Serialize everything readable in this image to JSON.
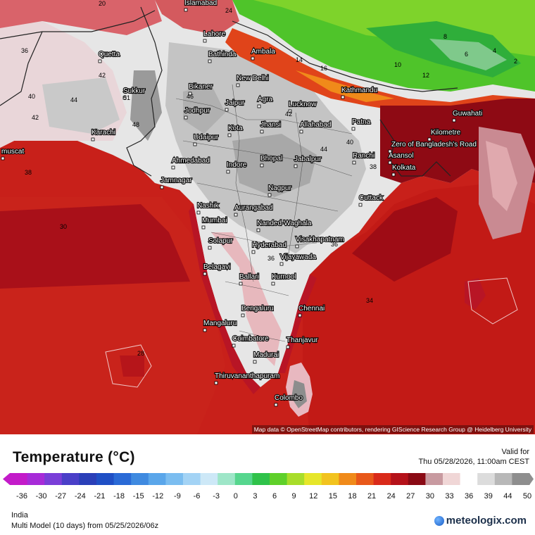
{
  "title": "Temperature (°C)",
  "valid_label": "Valid for",
  "valid_time": "Thu 05/28/2026, 11:00am CEST",
  "region": "India",
  "model_run": "Multi Model (10 days) from 05/25/2026/06z",
  "brand": "meteologix.com",
  "attribution": "Map data © OpenStreetMap contributors, rendering GIScience Research Group @ Heidelberg University",
  "legend_ticks": [
    "-36",
    "-30",
    "-27",
    "-24",
    "-21",
    "-18",
    "-15",
    "-12",
    "-9",
    "-6",
    "-3",
    "0",
    "3",
    "6",
    "9",
    "12",
    "15",
    "18",
    "21",
    "24",
    "27",
    "30",
    "33",
    "36",
    "39",
    "44",
    "50"
  ],
  "legend_colors": [
    "#c31bc9",
    "#a72bd8",
    "#7a3ed8",
    "#4a3fc8",
    "#2a3fb8",
    "#1f4fc5",
    "#2a6ad6",
    "#3f8ae0",
    "#5aa6ea",
    "#7bbdf0",
    "#a3d3f5",
    "#cde8f7",
    "#9ee6c8",
    "#56d68e",
    "#2fc24a",
    "#5fd02a",
    "#a8dd2a",
    "#e6e62a",
    "#f2c31e",
    "#f08a1a",
    "#e8581a",
    "#d92a1a",
    "#b5121a",
    "#8a0a14",
    "#c89aa0",
    "#f0d6d6",
    "#ffffff",
    "#dcdcdc",
    "#b8b8b8",
    "#8e8e8e"
  ],
  "cities": [
    {
      "name": "Islamabad"
    },
    {
      "name": "Lahore"
    },
    {
      "name": "Quetta"
    },
    {
      "name": "Bathinda"
    },
    {
      "name": "Ambala"
    },
    {
      "name": "New Delhi"
    },
    {
      "name": "Kathmandu"
    },
    {
      "name": "Sukkur"
    },
    {
      "name": "Bikaner"
    },
    {
      "name": "Agra"
    },
    {
      "name": "Lucknow"
    },
    {
      "name": "Jaipur"
    },
    {
      "name": "Jodhpur"
    },
    {
      "name": "Guwahati"
    },
    {
      "name": "Karachi"
    },
    {
      "name": "Kota"
    },
    {
      "name": "Jhansi"
    },
    {
      "name": "Allahabad"
    },
    {
      "name": "Patna"
    },
    {
      "name": "Udaipur"
    },
    {
      "name": "Ahmedabad"
    },
    {
      "name": "Indore"
    },
    {
      "name": "Bhopal"
    },
    {
      "name": "Jabalpur"
    },
    {
      "name": "Ranchi"
    },
    {
      "name": "Asansol"
    },
    {
      "name": "Kolkata"
    },
    {
      "name": "Jamnagar"
    },
    {
      "name": "Nagpur"
    },
    {
      "name": "Nashik"
    },
    {
      "name": "Aurangabad"
    },
    {
      "name": "Cuttack"
    },
    {
      "name": "Mumbai"
    },
    {
      "name": "Nanded-Waghala"
    },
    {
      "name": "Visakhapatnam"
    },
    {
      "name": "Solapur"
    },
    {
      "name": "Hyderabad"
    },
    {
      "name": "Vijayawada"
    },
    {
      "name": "Belagavi"
    },
    {
      "name": "Ballari"
    },
    {
      "name": "Kurnool"
    },
    {
      "name": "Bengaluru"
    },
    {
      "name": "Chennai"
    },
    {
      "name": "Mangaluru"
    },
    {
      "name": "Coimbatore"
    },
    {
      "name": "Thanjavur"
    },
    {
      "name": "Madurai"
    },
    {
      "name": "Thiruvananthapuram"
    },
    {
      "name": "Colombo"
    },
    {
      "name": "Zero of Bangladesh's Road"
    },
    {
      "name": "Kilometre"
    },
    {
      "name": "muscat"
    }
  ],
  "iso_values": [
    "20",
    "24",
    "36",
    "42",
    "40",
    "44",
    "48",
    "51",
    "46",
    "42",
    "38",
    "30",
    "28",
    "36",
    "42",
    "44",
    "40",
    "38",
    "36",
    "34",
    "16",
    "14",
    "12",
    "10",
    "8",
    "6",
    "4",
    "2"
  ]
}
